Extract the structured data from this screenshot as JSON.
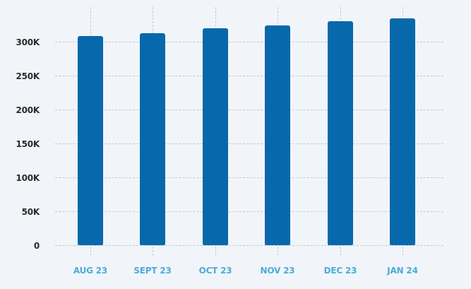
{
  "colors": {
    "background": "#f1f5f9",
    "bar": "#0868ac",
    "grid": "#c3c9d0",
    "y_tick_text": "#2a2a2a",
    "x_tick_text": "#4bacd9"
  },
  "chart_data": {
    "type": "bar",
    "title": "",
    "xlabel": "",
    "ylabel": "",
    "categories": [
      "AUG 23",
      "SEPT 23",
      "OCT 23",
      "NOV 23",
      "DEC 23",
      "JAN 24"
    ],
    "values": [
      308000,
      313000,
      320000,
      324000,
      330000,
      334000
    ],
    "ylim": [
      0,
      300000
    ],
    "y_ticks": [
      0,
      50000,
      100000,
      150000,
      200000,
      250000,
      300000
    ],
    "y_tick_labels": [
      "0",
      "50K",
      "100K",
      "150K",
      "200K",
      "250K",
      "300K"
    ],
    "grid": {
      "horizontal": true,
      "vertical": true,
      "style": "dashed"
    },
    "legend": null
  }
}
